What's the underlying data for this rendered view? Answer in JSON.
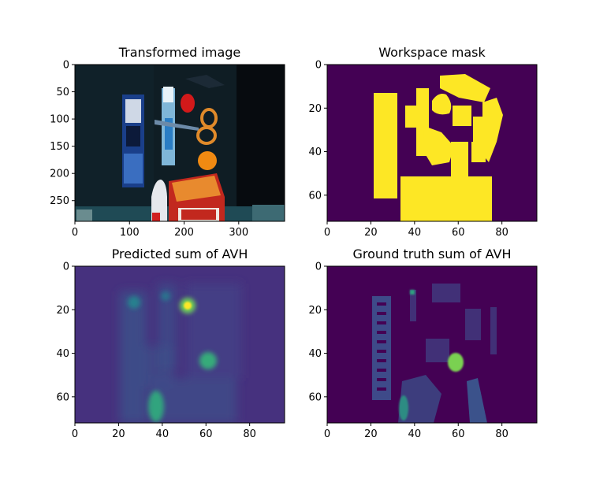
{
  "figure": {
    "background": "#ffffff",
    "colormap": "viridis"
  },
  "chart_data": [
    {
      "type": "heatmap",
      "title": "Transformed image",
      "xlim": [
        0,
        384
      ],
      "ylim": [
        288,
        0
      ],
      "xticks": [
        0,
        100,
        200,
        300
      ],
      "yticks": [
        0,
        50,
        100,
        150,
        200,
        250
      ],
      "content": "RGB photo of tabletop objects (toothpaste box, toothpaste tube, scissors, red ball, orange, white bottle, cracker box) on a dark blue background"
    },
    {
      "type": "heatmap",
      "title": "Workspace mask",
      "xlim": [
        0,
        96
      ],
      "ylim": [
        72,
        0
      ],
      "xticks": [
        0,
        20,
        40,
        60,
        80
      ],
      "yticks": [
        0,
        20,
        40,
        60
      ],
      "colors": {
        "background": "#440154",
        "mask": "#fde725"
      }
    },
    {
      "type": "heatmap",
      "title": "Predicted sum of AVH",
      "xlim": [
        0,
        96
      ],
      "ylim": [
        72,
        0
      ],
      "xticks": [
        0,
        20,
        40,
        60,
        80
      ],
      "yticks": [
        0,
        20,
        40,
        60
      ],
      "colors": {
        "background": "#46317e",
        "low": "#3b518b",
        "high": "#6ccd5a"
      },
      "hotspots": [
        {
          "x": 51,
          "y": 18,
          "level": "high"
        },
        {
          "x": 61,
          "y": 43,
          "level": "medium"
        },
        {
          "x": 37,
          "y": 68,
          "level": "medium"
        }
      ]
    },
    {
      "type": "heatmap",
      "title": "Ground truth sum of AVH",
      "xlim": [
        0,
        96
      ],
      "ylim": [
        72,
        0
      ],
      "xticks": [
        0,
        20,
        40,
        60,
        80
      ],
      "yticks": [
        0,
        20,
        40,
        60
      ],
      "colors": {
        "background": "#440154",
        "low": "#3e4a89",
        "high": "#7ad151"
      },
      "hotspots": [
        {
          "x": 59,
          "y": 44,
          "level": "high"
        },
        {
          "x": 35,
          "y": 67,
          "level": "medium"
        }
      ]
    }
  ]
}
